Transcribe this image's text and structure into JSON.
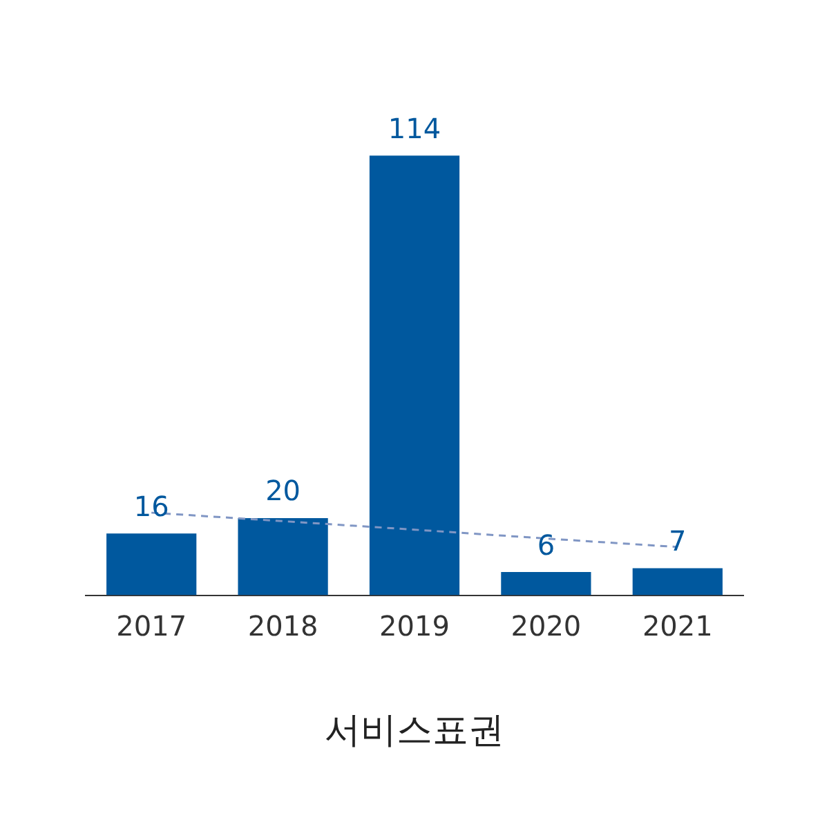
{
  "chart_data": {
    "type": "bar",
    "xlabel": "서비스표권",
    "categories": [
      "2017",
      "2018",
      "2019",
      "2020",
      "2021"
    ],
    "series": [
      {
        "color": "#00589e",
        "values": [
          16,
          20,
          114,
          6,
          7
        ],
        "value_labels": [
          "16",
          "20",
          "114",
          "6",
          "7"
        ]
      },
      {
        "type": "line",
        "color": "#8096c4",
        "values": [
          21.4,
          19.2,
          17.0,
          14.7,
          12.5
        ],
        "line_style": "dashed",
        "marker": "none"
      }
    ],
    "grid": false,
    "legend": false,
    "tick_labels": "x"
  }
}
